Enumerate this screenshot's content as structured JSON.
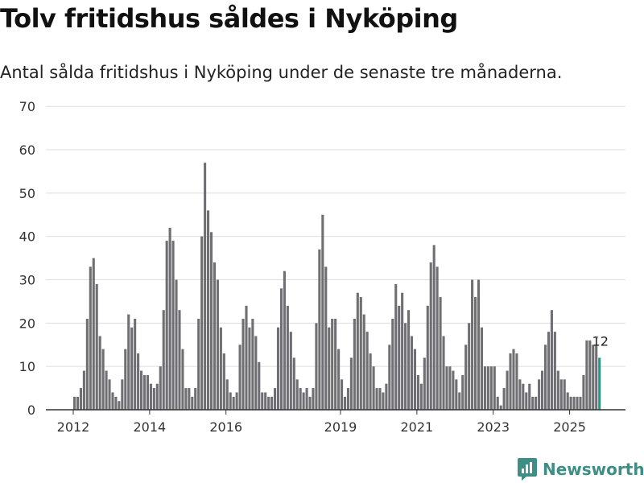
{
  "header": {
    "title": "Tolv fritidshus såldes i Nyköping",
    "subtitle": "Antal sålda fritidshus i Nyköping under de senaste tre månaderna."
  },
  "footer": {
    "brand": "Newsworthy"
  },
  "colors": {
    "bar": "#6f6e73",
    "highlight": "#1a9c8f",
    "grid": "#dddddd",
    "axis": "#333333",
    "brand": "#3d8f85"
  },
  "chart_data": {
    "type": "bar",
    "title": "Tolv fritidshus såldes i Nyköping",
    "subtitle": "Antal sålda fritidshus i Nyköping under de senaste tre månaderna.",
    "xlabel": "",
    "ylabel": "",
    "ylim": [
      0,
      70
    ],
    "yticks": [
      0,
      10,
      20,
      30,
      40,
      50,
      60,
      70
    ],
    "xtick_labels": [
      "2012",
      "2014",
      "2016",
      "2019",
      "2021",
      "2023",
      "2025"
    ],
    "grid": true,
    "series": [
      {
        "name": "Antal sålda fritidshus",
        "start": "2012-01",
        "values": [
          3,
          3,
          5,
          9,
          21,
          33,
          35,
          29,
          17,
          14,
          9,
          7,
          4,
          3,
          2,
          7,
          14,
          22,
          19,
          21,
          13,
          9,
          8,
          8,
          6,
          5,
          6,
          10,
          23,
          39,
          42,
          39,
          30,
          23,
          14,
          5,
          5,
          3,
          5,
          21,
          40,
          57,
          46,
          41,
          34,
          30,
          19,
          13,
          7,
          4,
          3,
          4,
          15,
          21,
          24,
          19,
          21,
          17,
          11,
          4,
          4,
          3,
          3,
          5,
          19,
          28,
          32,
          24,
          18,
          12,
          7,
          5,
          4,
          5,
          3,
          5,
          20,
          37,
          45,
          33,
          19,
          21,
          21,
          14,
          7,
          3,
          5,
          12,
          21,
          27,
          26,
          22,
          18,
          13,
          10,
          5,
          5,
          4,
          6,
          15,
          21,
          29,
          24,
          27,
          20,
          23,
          17,
          14,
          8,
          6,
          12,
          24,
          34,
          38,
          33,
          26,
          17,
          10,
          10,
          9,
          7,
          4,
          8,
          15,
          20,
          30,
          26,
          30,
          19,
          10,
          10,
          10,
          10,
          3,
          1,
          5,
          9,
          13,
          14,
          13,
          7,
          6,
          4,
          6,
          3,
          3,
          7,
          9,
          15,
          18,
          23,
          18,
          9,
          7,
          7,
          4,
          3,
          3,
          3,
          3,
          8,
          16,
          16,
          15,
          15,
          12
        ]
      }
    ],
    "highlight_last": true,
    "annotation": {
      "label": "12"
    }
  }
}
